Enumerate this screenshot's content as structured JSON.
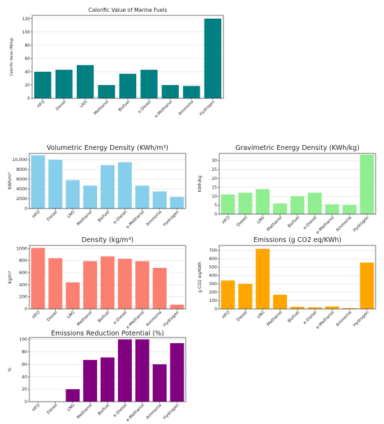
{
  "categories": [
    "HFO",
    "Diesel",
    "LNG",
    "Methanol",
    "Biofuel",
    "e-Diesel",
    "e-Methanol",
    "Ammonia",
    "Hydrogen"
  ],
  "chart_data": [
    {
      "type": "bar",
      "title": "Calorific Value of Marine Fuels",
      "xlabel": "",
      "ylabel": "Calorific Value (MJ/kg)",
      "categories": [
        "HFO",
        "Diesel",
        "LNG",
        "Methanol",
        "Biofuel",
        "e-Diesel",
        "e-Methanol",
        "Ammonia",
        "Hydrogen"
      ],
      "values": [
        40,
        43,
        50,
        20,
        37,
        43,
        20,
        18.6,
        120
      ],
      "ylim": [
        0,
        125
      ],
      "yticks": [
        0,
        20,
        40,
        60,
        80,
        100,
        120
      ],
      "ytick_labels": [
        "0",
        "20",
        "40",
        "60",
        "80",
        "100",
        "120"
      ],
      "color": "#008080",
      "grid": true
    },
    {
      "type": "bar",
      "title": "Volumetric Energy Density (KWh/m³)",
      "xlabel": "",
      "ylabel": "KWh/m³",
      "categories": [
        "HFO",
        "Diesel",
        "LNG",
        "Methanol",
        "Biofuel",
        "e-Diesel",
        "e-Methanol",
        "Ammonia",
        "Hydrogen"
      ],
      "values": [
        10900,
        10000,
        5800,
        4700,
        8900,
        9500,
        4700,
        3500,
        2400
      ],
      "ylim": [
        0,
        11300
      ],
      "yticks": [
        0,
        2000,
        4000,
        6000,
        8000,
        10000
      ],
      "ytick_labels": [
        "0",
        "2000",
        "4000",
        "6000",
        "8000",
        "10,000"
      ],
      "color": "#87ceeb",
      "grid": true
    },
    {
      "type": "bar",
      "title": "Gravimetric Energy Density (KWh/kg)",
      "xlabel": "",
      "ylabel": "KWh/kg",
      "categories": [
        "HFO",
        "Diesel",
        "LNG",
        "Methanol",
        "Biofuel",
        "e-Diesel",
        "e-Methanol",
        "Ammonia",
        "Hydrogen"
      ],
      "values": [
        11,
        12,
        14,
        6,
        10,
        12,
        5.5,
        5.2,
        33.3
      ],
      "ylim": [
        0,
        34
      ],
      "yticks": [
        0,
        5,
        10,
        15,
        20,
        25,
        30
      ],
      "ytick_labels": [
        "0",
        "5",
        "10",
        "15",
        "20",
        "25",
        "30"
      ],
      "color": "#90ee90",
      "grid": true
    },
    {
      "type": "bar",
      "title": "Density (kg/m³)",
      "xlabel": "",
      "ylabel": "kg/m³",
      "categories": [
        "HFO",
        "Diesel",
        "LNG",
        "Methanol",
        "Biofuel",
        "e-Diesel",
        "e-Methanol",
        "Ammonia",
        "Hydrogen"
      ],
      "values": [
        1010,
        840,
        440,
        790,
        870,
        830,
        790,
        680,
        71
      ],
      "ylim": [
        0,
        1050
      ],
      "yticks": [
        0,
        200,
        400,
        600,
        800,
        1000
      ],
      "ytick_labels": [
        "0",
        "200",
        "400",
        "600",
        "800",
        "1000"
      ],
      "color": "#fa8072",
      "grid": true
    },
    {
      "type": "bar",
      "title": "Emissions (g CO2 eq/KWh)",
      "xlabel": "",
      "ylabel": "g CO2 eq/KWh",
      "categories": [
        "HFO",
        "Diesel",
        "LNG",
        "Methanol",
        "Biofuel",
        "e-Diesel",
        "e-Methanol",
        "Ammonia",
        "Hydrogen"
      ],
      "values": [
        340,
        300,
        720,
        170,
        25,
        20,
        30,
        10,
        555
      ],
      "ylim": [
        0,
        760
      ],
      "yticks": [
        0,
        100,
        200,
        300,
        400,
        500,
        600,
        700
      ],
      "ytick_labels": [
        "0",
        "100",
        "200",
        "300",
        "400",
        "500",
        "600",
        "700"
      ],
      "color": "#ffa500",
      "grid": true
    },
    {
      "type": "bar",
      "title": "Emissions Reduction Potential (%)",
      "xlabel": "",
      "ylabel": "%",
      "categories": [
        "HFO",
        "Diesel",
        "LNG",
        "Methanol",
        "Biofuel",
        "e-Diesel",
        "e-Methanol",
        "Ammonia",
        "Hydrogen"
      ],
      "values": [
        0,
        0,
        20,
        67,
        71,
        100,
        100,
        60,
        94
      ],
      "ylim": [
        0,
        103
      ],
      "yticks": [
        0,
        20,
        40,
        60,
        80,
        100
      ],
      "ytick_labels": [
        "0",
        "20",
        "40",
        "60",
        "80",
        "100"
      ],
      "color": "#800080",
      "grid": true
    }
  ]
}
